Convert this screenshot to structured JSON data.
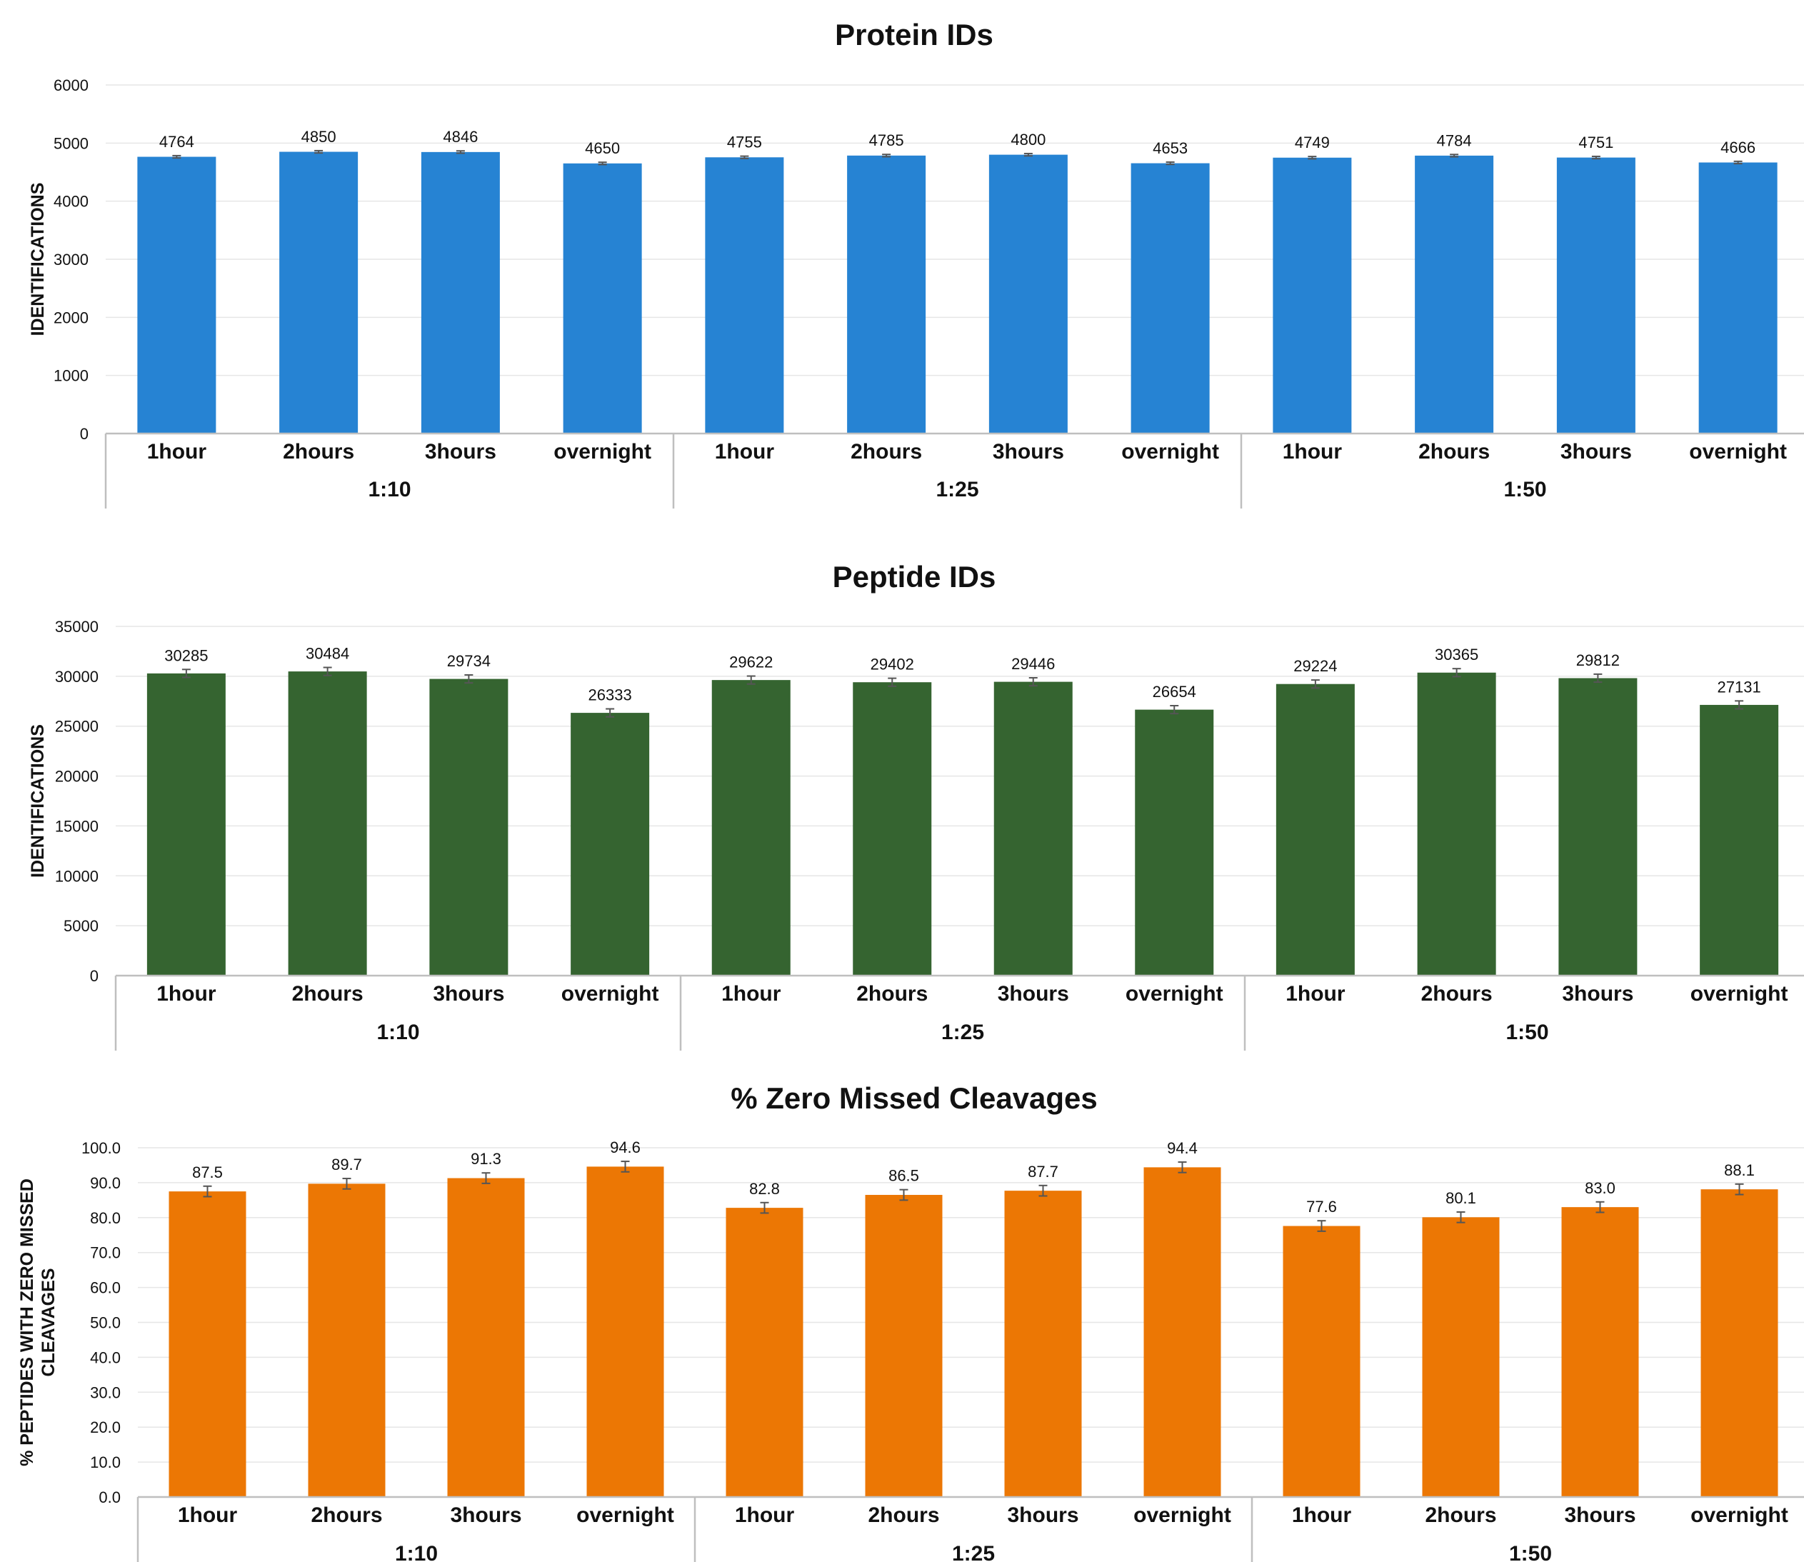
{
  "chart_data": [
    {
      "type": "bar",
      "title": "Protein IDs",
      "ylabel": "IDENTIFICATIONS",
      "xlabel": "",
      "ylim": [
        0,
        6000
      ],
      "yticks": [
        0,
        1000,
        2000,
        3000,
        4000,
        5000,
        6000
      ],
      "ytick_labels": [
        "0",
        "1000",
        "2000",
        "3000",
        "4000",
        "5000",
        "6000"
      ],
      "categories": [
        "1hour",
        "2hours",
        "3hours",
        "overnight",
        "1hour",
        "2hours",
        "3hours",
        "overnight",
        "1hour",
        "2hours",
        "3hours",
        "overnight"
      ],
      "groups": [
        "1:10",
        "1:25",
        "1:50"
      ],
      "values": [
        4764,
        4850,
        4846,
        4650,
        4755,
        4785,
        4800,
        4653,
        4749,
        4784,
        4751,
        4666
      ],
      "value_labels": [
        "4764",
        "4850",
        "4846",
        "4650",
        "4755",
        "4785",
        "4800",
        "4653",
        "4749",
        "4784",
        "4751",
        "4666"
      ],
      "errors": [
        20,
        20,
        20,
        20,
        20,
        20,
        20,
        20,
        20,
        20,
        20,
        20
      ],
      "color": "#2683D3",
      "grid": true,
      "legend": "none"
    },
    {
      "type": "bar",
      "title": "Peptide IDs",
      "ylabel": "IDENTIFICATIONS",
      "xlabel": "",
      "ylim": [
        0,
        35000
      ],
      "yticks": [
        0,
        5000,
        10000,
        15000,
        20000,
        25000,
        30000,
        35000
      ],
      "ytick_labels": [
        "0",
        "5000",
        "10000",
        "15000",
        "20000",
        "25000",
        "30000",
        "35000"
      ],
      "categories": [
        "1hour",
        "2hours",
        "3hours",
        "overnight",
        "1hour",
        "2hours",
        "3hours",
        "overnight",
        "1hour",
        "2hours",
        "3hours",
        "overnight"
      ],
      "groups": [
        "1:10",
        "1:25",
        "1:50"
      ],
      "values": [
        30285,
        30484,
        29734,
        26333,
        29622,
        29402,
        29446,
        26654,
        29224,
        30365,
        29812,
        27131
      ],
      "value_labels": [
        "30285",
        "30484",
        "29734",
        "26333",
        "29622",
        "29402",
        "29446",
        "26654",
        "29224",
        "30365",
        "29812",
        "27131"
      ],
      "errors": [
        400,
        400,
        400,
        400,
        400,
        400,
        400,
        400,
        400,
        400,
        400,
        400
      ],
      "color": "#356430",
      "grid": true,
      "legend": "none"
    },
    {
      "type": "bar",
      "title": "% Zero Missed Cleavages",
      "ylabel": "% PEPTIDES WITH ZERO MISSED CLEAVAGES",
      "ylabel_lines": [
        "% PEPTIDES WITH ZERO MISSED",
        "CLEAVAGES"
      ],
      "xlabel": "",
      "ylim": [
        0,
        100
      ],
      "yticks": [
        0,
        10,
        20,
        30,
        40,
        50,
        60,
        70,
        80,
        90,
        100
      ],
      "ytick_labels": [
        "0.0",
        "10.0",
        "20.0",
        "30.0",
        "40.0",
        "50.0",
        "60.0",
        "70.0",
        "80.0",
        "90.0",
        "100.0"
      ],
      "categories": [
        "1hour",
        "2hours",
        "3hours",
        "overnight",
        "1hour",
        "2hours",
        "3hours",
        "overnight",
        "1hour",
        "2hours",
        "3hours",
        "overnight"
      ],
      "groups": [
        "1:10",
        "1:25",
        "1:50"
      ],
      "values": [
        87.5,
        89.7,
        91.3,
        94.6,
        82.8,
        86.5,
        87.7,
        94.4,
        77.6,
        80.1,
        83.0,
        88.1
      ],
      "value_labels": [
        "87.5",
        "89.7",
        "91.3",
        "94.6",
        "82.8",
        "86.5",
        "87.7",
        "94.4",
        "77.6",
        "80.1",
        "83.0",
        "88.1"
      ],
      "errors": [
        1.5,
        1.5,
        1.5,
        1.5,
        1.5,
        1.5,
        1.5,
        1.5,
        1.5,
        1.5,
        1.5,
        1.5
      ],
      "color": "#EC7704",
      "grid": true,
      "legend": "none"
    }
  ]
}
